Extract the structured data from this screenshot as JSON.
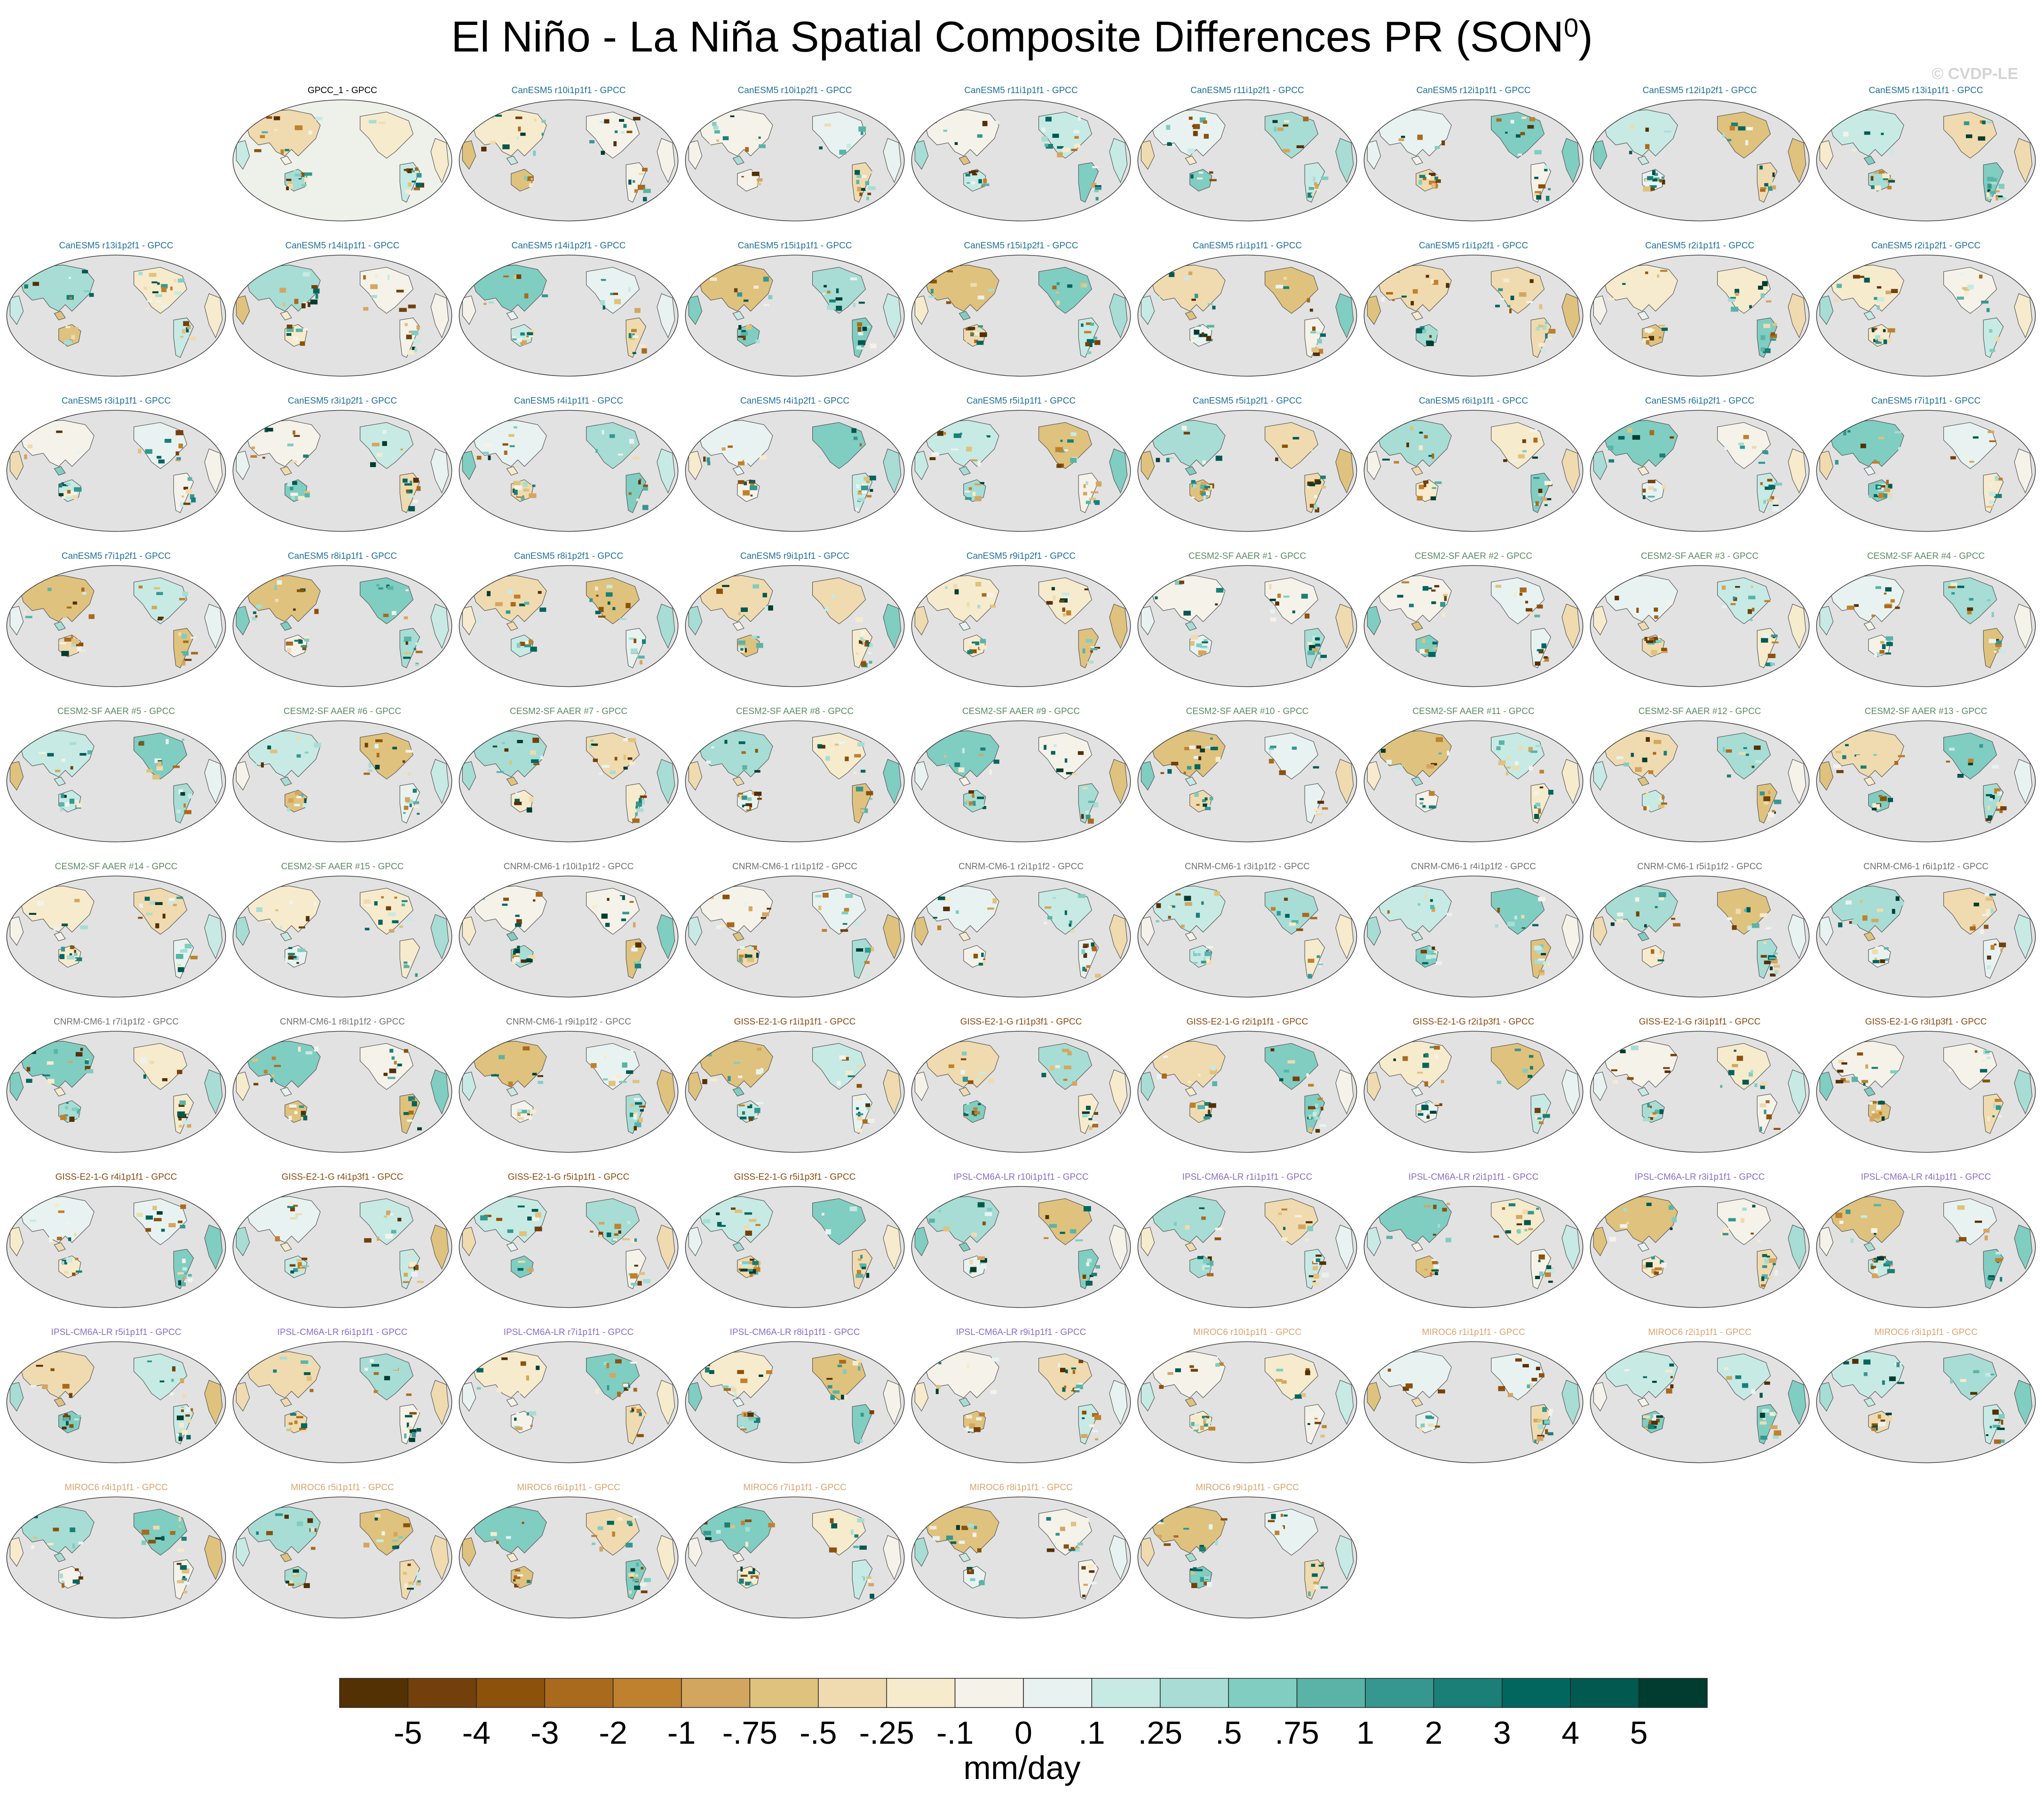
{
  "title": "El Niño - La Niña Spatial Composite Differences PR (SON",
  "title_superscript": "0",
  "title_suffix": ")",
  "watermark": "© CVDP-LE",
  "chart_data": {
    "type": "heatmap",
    "colorbar": {
      "units": "mm/day",
      "tick_labels": [
        "-5",
        "-4",
        "-3",
        "-2",
        "-1",
        "-.75",
        "-.5",
        "-.25",
        "-.1",
        "0",
        ".1",
        ".25",
        ".5",
        ".75",
        "1",
        "2",
        "3",
        "4",
        "5"
      ],
      "colors": [
        "#543005",
        "#73400c",
        "#8c510a",
        "#a96a1e",
        "#bf812d",
        "#d3a660",
        "#dfc27d",
        "#efdbaf",
        "#f6ebcd",
        "#f5f2ea",
        "#e8f3f1",
        "#c7eae5",
        "#a7ddd4",
        "#80cdc1",
        "#5ab3a7",
        "#35978f",
        "#1a7f76",
        "#01665e",
        "#02594f",
        "#003c30"
      ]
    },
    "panels": [
      {
        "label": "GPCC_1 - GPCC",
        "group": "obs"
      },
      {
        "label": "CanESM5 r10i1p1f1 - GPCC",
        "group": "CanESM5"
      },
      {
        "label": "CanESM5 r10i1p2f1 - GPCC",
        "group": "CanESM5"
      },
      {
        "label": "CanESM5 r11i1p1f1 - GPCC",
        "group": "CanESM5"
      },
      {
        "label": "CanESM5 r11i1p2f1 - GPCC",
        "group": "CanESM5"
      },
      {
        "label": "CanESM5 r12i1p1f1 - GPCC",
        "group": "CanESM5"
      },
      {
        "label": "CanESM5 r12i1p2f1 - GPCC",
        "group": "CanESM5"
      },
      {
        "label": "CanESM5 r13i1p1f1 - GPCC",
        "group": "CanESM5"
      },
      {
        "label": "CanESM5 r13i1p2f1 - GPCC",
        "group": "CanESM5"
      },
      {
        "label": "CanESM5 r14i1p1f1 - GPCC",
        "group": "CanESM5"
      },
      {
        "label": "CanESM5 r14i1p2f1 - GPCC",
        "group": "CanESM5"
      },
      {
        "label": "CanESM5 r15i1p1f1 - GPCC",
        "group": "CanESM5"
      },
      {
        "label": "CanESM5 r15i1p2f1 - GPCC",
        "group": "CanESM5"
      },
      {
        "label": "CanESM5 r1i1p1f1 - GPCC",
        "group": "CanESM5"
      },
      {
        "label": "CanESM5 r1i1p2f1 - GPCC",
        "group": "CanESM5"
      },
      {
        "label": "CanESM5 r2i1p1f1 - GPCC",
        "group": "CanESM5"
      },
      {
        "label": "CanESM5 r2i1p2f1 - GPCC",
        "group": "CanESM5"
      },
      {
        "label": "CanESM5 r3i1p1f1 - GPCC",
        "group": "CanESM5"
      },
      {
        "label": "CanESM5 r3i1p2f1 - GPCC",
        "group": "CanESM5"
      },
      {
        "label": "CanESM5 r4i1p1f1 - GPCC",
        "group": "CanESM5"
      },
      {
        "label": "CanESM5 r4i1p2f1 - GPCC",
        "group": "CanESM5"
      },
      {
        "label": "CanESM5 r5i1p1f1 - GPCC",
        "group": "CanESM5"
      },
      {
        "label": "CanESM5 r5i1p2f1 - GPCC",
        "group": "CanESM5"
      },
      {
        "label": "CanESM5 r6i1p1f1 - GPCC",
        "group": "CanESM5"
      },
      {
        "label": "CanESM5 r6i1p2f1 - GPCC",
        "group": "CanESM5"
      },
      {
        "label": "CanESM5 r7i1p1f1 - GPCC",
        "group": "CanESM5"
      },
      {
        "label": "CanESM5 r7i1p2f1 - GPCC",
        "group": "CanESM5"
      },
      {
        "label": "CanESM5 r8i1p1f1 - GPCC",
        "group": "CanESM5"
      },
      {
        "label": "CanESM5 r8i1p2f1 - GPCC",
        "group": "CanESM5"
      },
      {
        "label": "CanESM5 r9i1p1f1 - GPCC",
        "group": "CanESM5"
      },
      {
        "label": "CanESM5 r9i1p2f1 - GPCC",
        "group": "CanESM5"
      },
      {
        "label": "CESM2-SF AAER #1 - GPCC",
        "group": "CESM2"
      },
      {
        "label": "CESM2-SF AAER #2 - GPCC",
        "group": "CESM2"
      },
      {
        "label": "CESM2-SF AAER #3 - GPCC",
        "group": "CESM2"
      },
      {
        "label": "CESM2-SF AAER #4 - GPCC",
        "group": "CESM2"
      },
      {
        "label": "CESM2-SF AAER #5 - GPCC",
        "group": "CESM2"
      },
      {
        "label": "CESM2-SF AAER #6 - GPCC",
        "group": "CESM2"
      },
      {
        "label": "CESM2-SF AAER #7 - GPCC",
        "group": "CESM2"
      },
      {
        "label": "CESM2-SF AAER #8 - GPCC",
        "group": "CESM2"
      },
      {
        "label": "CESM2-SF AAER #9 - GPCC",
        "group": "CESM2"
      },
      {
        "label": "CESM2-SF AAER #10 - GPCC",
        "group": "CESM2"
      },
      {
        "label": "CESM2-SF AAER #11 - GPCC",
        "group": "CESM2"
      },
      {
        "label": "CESM2-SF AAER #12 - GPCC",
        "group": "CESM2"
      },
      {
        "label": "CESM2-SF AAER #13 - GPCC",
        "group": "CESM2"
      },
      {
        "label": "CESM2-SF AAER #14 - GPCC",
        "group": "CESM2"
      },
      {
        "label": "CESM2-SF AAER #15 - GPCC",
        "group": "CESM2"
      },
      {
        "label": "CNRM-CM6-1 r10i1p1f2 - GPCC",
        "group": "CNRM"
      },
      {
        "label": "CNRM-CM6-1 r1i1p1f2 - GPCC",
        "group": "CNRM"
      },
      {
        "label": "CNRM-CM6-1 r2i1p1f2 - GPCC",
        "group": "CNRM"
      },
      {
        "label": "CNRM-CM6-1 r3i1p1f2 - GPCC",
        "group": "CNRM"
      },
      {
        "label": "CNRM-CM6-1 r4i1p1f2 - GPCC",
        "group": "CNRM"
      },
      {
        "label": "CNRM-CM6-1 r5i1p1f2 - GPCC",
        "group": "CNRM"
      },
      {
        "label": "CNRM-CM6-1 r6i1p1f2 - GPCC",
        "group": "CNRM"
      },
      {
        "label": "CNRM-CM6-1 r7i1p1f2 - GPCC",
        "group": "CNRM"
      },
      {
        "label": "CNRM-CM6-1 r8i1p1f2 - GPCC",
        "group": "CNRM"
      },
      {
        "label": "CNRM-CM6-1 r9i1p1f2 - GPCC",
        "group": "CNRM"
      },
      {
        "label": "GISS-E2-1-G r1i1p1f1 - GPCC",
        "group": "GISS"
      },
      {
        "label": "GISS-E2-1-G r1i1p3f1 - GPCC",
        "group": "GISS"
      },
      {
        "label": "GISS-E2-1-G r2i1p1f1 - GPCC",
        "group": "GISS"
      },
      {
        "label": "GISS-E2-1-G r2i1p3f1 - GPCC",
        "group": "GISS"
      },
      {
        "label": "GISS-E2-1-G r3i1p1f1 - GPCC",
        "group": "GISS"
      },
      {
        "label": "GISS-E2-1-G r3i1p3f1 - GPCC",
        "group": "GISS"
      },
      {
        "label": "GISS-E2-1-G r4i1p1f1 - GPCC",
        "group": "GISS"
      },
      {
        "label": "GISS-E2-1-G r4i1p3f1 - GPCC",
        "group": "GISS"
      },
      {
        "label": "GISS-E2-1-G r5i1p1f1 - GPCC",
        "group": "GISS"
      },
      {
        "label": "GISS-E2-1-G r5i1p3f1 - GPCC",
        "group": "GISS"
      },
      {
        "label": "IPSL-CM6A-LR r10i1p1f1 - GPCC",
        "group": "IPSL"
      },
      {
        "label": "IPSL-CM6A-LR r1i1p1f1 - GPCC",
        "group": "IPSL"
      },
      {
        "label": "IPSL-CM6A-LR r2i1p1f1 - GPCC",
        "group": "IPSL"
      },
      {
        "label": "IPSL-CM6A-LR r3i1p1f1 - GPCC",
        "group": "IPSL"
      },
      {
        "label": "IPSL-CM6A-LR r4i1p1f1 - GPCC",
        "group": "IPSL"
      },
      {
        "label": "IPSL-CM6A-LR r5i1p1f1 - GPCC",
        "group": "IPSL"
      },
      {
        "label": "IPSL-CM6A-LR r6i1p1f1 - GPCC",
        "group": "IPSL"
      },
      {
        "label": "IPSL-CM6A-LR r7i1p1f1 - GPCC",
        "group": "IPSL"
      },
      {
        "label": "IPSL-CM6A-LR r8i1p1f1 - GPCC",
        "group": "IPSL"
      },
      {
        "label": "IPSL-CM6A-LR r9i1p1f1 - GPCC",
        "group": "IPSL"
      },
      {
        "label": "MIROC6 r10i1p1f1 - GPCC",
        "group": "MIROC6"
      },
      {
        "label": "MIROC6 r1i1p1f1 - GPCC",
        "group": "MIROC6"
      },
      {
        "label": "MIROC6 r2i1p1f1 - GPCC",
        "group": "MIROC6"
      },
      {
        "label": "MIROC6 r3i1p1f1 - GPCC",
        "group": "MIROC6"
      },
      {
        "label": "MIROC6 r4i1p1f1 - GPCC",
        "group": "MIROC6"
      },
      {
        "label": "MIROC6 r5i1p1f1 - GPCC",
        "group": "MIROC6"
      },
      {
        "label": "MIROC6 r6i1p1f1 - GPCC",
        "group": "MIROC6"
      },
      {
        "label": "MIROC6 r7i1p1f1 - GPCC",
        "group": "MIROC6"
      },
      {
        "label": "MIROC6 r8i1p1f1 - GPCC",
        "group": "MIROC6"
      },
      {
        "label": "MIROC6 r9i1p1f1 - GPCC",
        "group": "MIROC6"
      }
    ],
    "label_colors": {
      "obs": "#000000",
      "CanESM5": "#1f6f9a",
      "CESM2": "#5c8a62",
      "CNRM": "#707070",
      "GISS": "#8a4a12",
      "IPSL": "#8a6cc8",
      "MIROC6": "#d9a46e"
    },
    "map_colors": {
      "ocean": "#e2e2e2",
      "coast": "#555555"
    }
  }
}
